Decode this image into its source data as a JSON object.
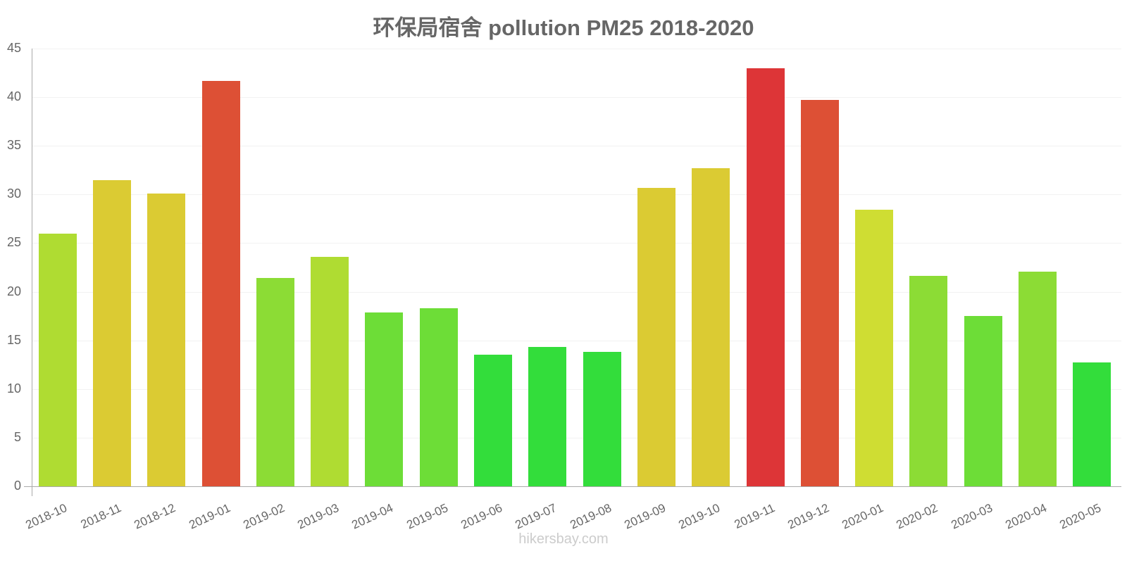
{
  "title": "环保局宿舍 pollution PM25 2018-2020",
  "credit": "hikersbay.com",
  "y_ticks": [
    "0",
    "5",
    "10",
    "15",
    "20",
    "25",
    "30",
    "35",
    "40",
    "45"
  ],
  "chart_data": {
    "type": "bar",
    "title": "环保局宿舍 pollution PM25 2018-2020",
    "xlabel": "",
    "ylabel": "",
    "ylim": [
      0,
      45
    ],
    "grid": true,
    "legend": "none",
    "categories": [
      "2018-10",
      "2018-11",
      "2018-12",
      "2019-01",
      "2019-02",
      "2019-03",
      "2019-04",
      "2019-05",
      "2019-06",
      "2019-07",
      "2019-08",
      "2019-09",
      "2019-10",
      "2019-11",
      "2019-12",
      "2020-01",
      "2020-02",
      "2020-03",
      "2020-04",
      "2020-05"
    ],
    "values": [
      26,
      31.5,
      30.1,
      41.7,
      21.4,
      23.6,
      17.9,
      18.3,
      13.5,
      14.3,
      13.8,
      30.7,
      32.7,
      43,
      39.7,
      28.4,
      21.6,
      17.5,
      22.1,
      12.7
    ],
    "colors": [
      "#afdc32",
      "#dbcb33",
      "#dbcb33",
      "#dd5035",
      "#8cdc35",
      "#afdc32",
      "#6ddd37",
      "#6ddd37",
      "#33dd3b",
      "#33dd3b",
      "#33dd3b",
      "#dbcb33",
      "#dbcb33",
      "#dd3537",
      "#dd5035",
      "#cfdd33",
      "#8cdc35",
      "#6ddd37",
      "#8cdc35",
      "#33dd3b"
    ]
  }
}
